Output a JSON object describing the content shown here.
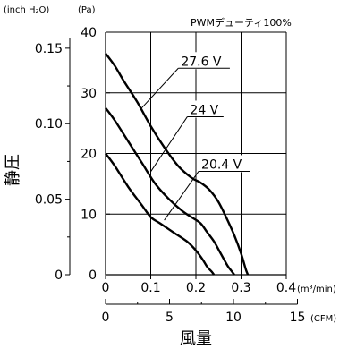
{
  "chart_data": {
    "type": "line",
    "annotation": "PWMデューティ100%",
    "left_axis_unit": "(inch H₂O)",
    "right_axis_unit": "(Pa)",
    "ylabel": "静圧",
    "xlabel": "風量",
    "x_top_unit": "(m³/min)",
    "x_bottom_unit": "(CFM)",
    "y_pa_ticks": [
      "40",
      "30",
      "20",
      "10",
      "0"
    ],
    "y_inch_ticks": [
      "0.15",
      "0.10",
      "0.05",
      "0"
    ],
    "x_m3_ticks": [
      "0",
      "0.1",
      "0.2",
      "0.3",
      "0.4"
    ],
    "x_cfm_ticks": [
      "0",
      "5",
      "10",
      "15"
    ],
    "xlim": [
      0,
      0.4
    ],
    "ylim": [
      0,
      40
    ],
    "grid": true,
    "series": [
      {
        "name": "27.6 V",
        "x": [
          0.0,
          0.02,
          0.04,
          0.07,
          0.1,
          0.13,
          0.16,
          0.19,
          0.21,
          0.23,
          0.25,
          0.27,
          0.285,
          0.3,
          0.31,
          0.315
        ],
        "y": [
          36.5,
          34.5,
          32.0,
          28.5,
          24.5,
          21.0,
          18.0,
          16.0,
          15.2,
          14.0,
          12.0,
          9.0,
          6.5,
          3.5,
          1.0,
          0.0
        ]
      },
      {
        "name": "24 V",
        "x": [
          0.0,
          0.02,
          0.05,
          0.08,
          0.11,
          0.14,
          0.17,
          0.19,
          0.21,
          0.225,
          0.24,
          0.255,
          0.27,
          0.28,
          0.285
        ],
        "y": [
          27.5,
          25.5,
          22.0,
          18.5,
          15.0,
          12.5,
          10.5,
          9.5,
          8.5,
          7.0,
          5.5,
          3.5,
          1.5,
          0.5,
          0.0
        ]
      },
      {
        "name": "20.4 V",
        "x": [
          0.0,
          0.02,
          0.05,
          0.08,
          0.1,
          0.12,
          0.15,
          0.18,
          0.2,
          0.215,
          0.225,
          0.235,
          0.24
        ],
        "y": [
          20.0,
          18.0,
          14.5,
          11.5,
          9.5,
          8.5,
          7.0,
          5.5,
          4.0,
          2.5,
          1.3,
          0.5,
          0.0
        ]
      }
    ],
    "label_positions": [
      {
        "series": "27.6 V",
        "at": [
          0.165,
          34.5
        ],
        "pointer": [
          0.08,
          27.5
        ]
      },
      {
        "series": "24 V",
        "at": [
          0.185,
          26.5
        ],
        "pointer": [
          0.1,
          17.0
        ]
      },
      {
        "series": "20.4 V",
        "at": [
          0.21,
          17.5
        ],
        "pointer": [
          0.13,
          9.0
        ]
      }
    ]
  }
}
